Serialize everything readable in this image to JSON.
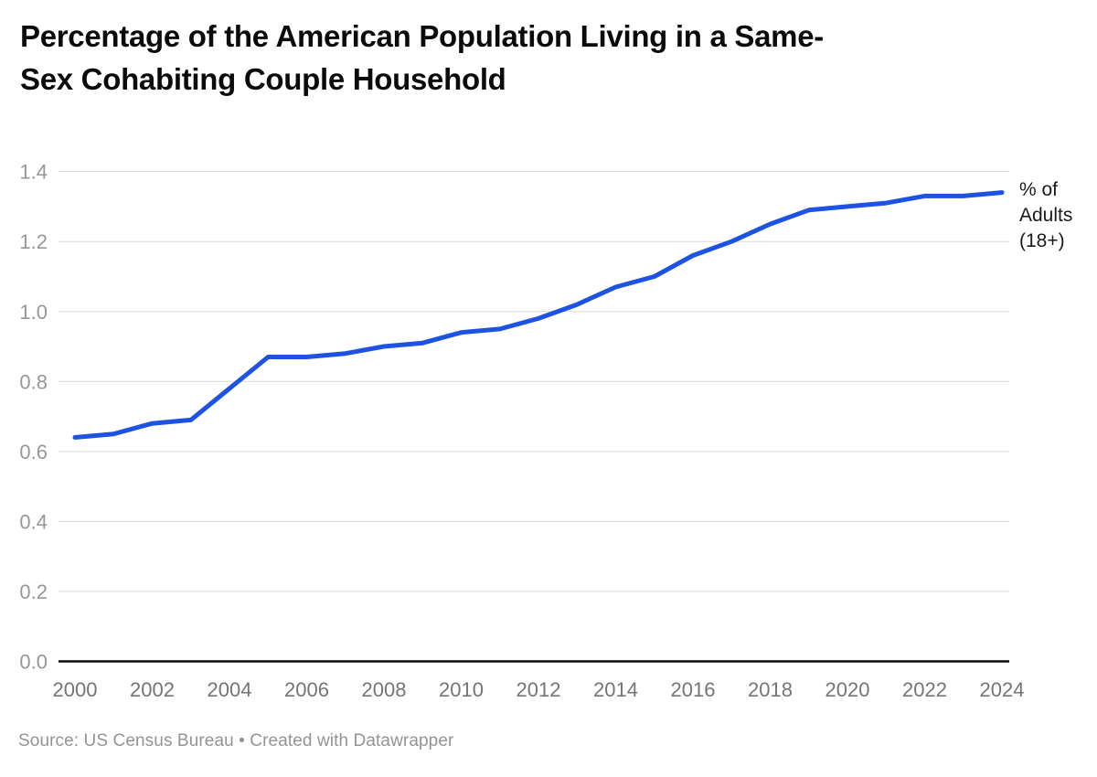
{
  "header": {
    "title": "Percentage of the American Population Living in a Same-Sex Cohabiting Couple Household",
    "title_lines": [
      "Percentage of the American Population Living in a Same-",
      "Sex Cohabiting Couple Household"
    ]
  },
  "chart_data": {
    "type": "line",
    "title": "Percentage of the American Population Living in a Same-Sex Cohabiting Couple Household",
    "xlabel": "",
    "ylabel": "",
    "x": [
      2000,
      2001,
      2002,
      2003,
      2004,
      2005,
      2006,
      2007,
      2008,
      2009,
      2010,
      2011,
      2012,
      2013,
      2014,
      2015,
      2016,
      2017,
      2018,
      2019,
      2020,
      2021,
      2022,
      2023,
      2024
    ],
    "series": [
      {
        "name": "% of Adults (18+)",
        "values": [
          0.64,
          0.65,
          0.68,
          0.69,
          0.78,
          0.87,
          0.87,
          0.88,
          0.9,
          0.91,
          0.94,
          0.95,
          0.98,
          1.02,
          1.07,
          1.1,
          1.16,
          1.2,
          1.25,
          1.29,
          1.3,
          1.31,
          1.33,
          1.33,
          1.34
        ]
      }
    ],
    "label_lines": [
      "% of",
      "Adults",
      "(18+)"
    ],
    "x_tick_labels": [
      "2000",
      "2002",
      "2004",
      "2006",
      "2008",
      "2010",
      "2012",
      "2014",
      "2016",
      "2018",
      "2020",
      "2022",
      "2024"
    ],
    "y_tick_labels": [
      "0.0",
      "0.2",
      "0.4",
      "0.6",
      "0.8",
      "1.0",
      "1.2",
      "1.4"
    ],
    "xlim": [
      2000,
      2024
    ],
    "ylim": [
      0,
      1.4
    ],
    "grid": true,
    "legend_position": "right-of-line-end",
    "line_color": "#1d52e2",
    "colors": {
      "gridline": "#dadada",
      "axis": "#0a0a0a",
      "y_tick_text": "#979797",
      "x_tick_text": "#757575",
      "series_label_text": "#1a1a1a",
      "title_text": "#0b0b0b",
      "footer_text": "#949494"
    }
  },
  "footer": {
    "source": "Source: US Census Bureau • Created with Datawrapper"
  }
}
